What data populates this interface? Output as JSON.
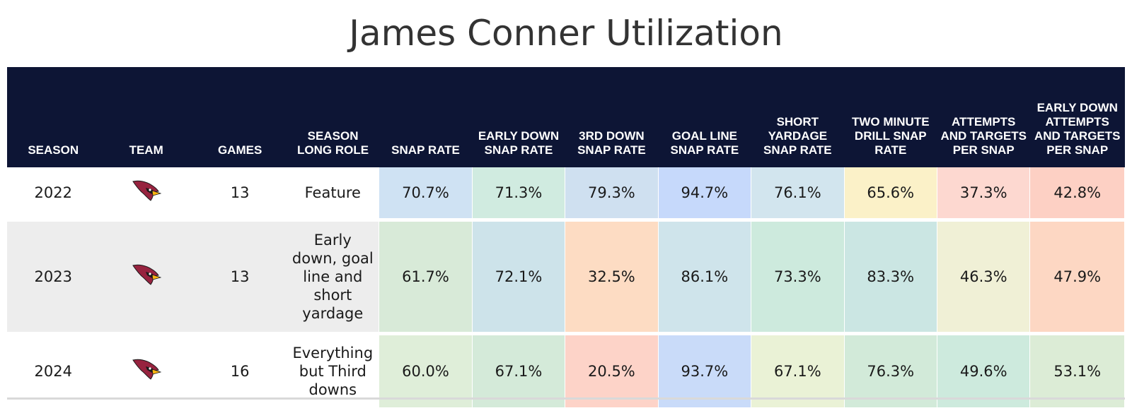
{
  "title": "James Conner Utilization",
  "chart_data": {
    "type": "table",
    "title": "James Conner Utilization",
    "columns": [
      "SEASON",
      "TEAM",
      "GAMES",
      "SEASON LONG ROLE",
      "SNAP RATE",
      "EARLY DOWN SNAP RATE",
      "3RD DOWN SNAP RATE",
      "GOAL LINE SNAP RATE",
      "SHORT YARDAGE SNAP RATE",
      "TWO MINUTE DRILL SNAP RATE",
      "ATTEMPTS AND TARGETS PER SNAP",
      "EARLY DOWN ATTEMPTS AND TARGETS PER SNAP"
    ],
    "rows": [
      {
        "season": "2022",
        "team": "cardinals-logo",
        "games": "13",
        "role": "Feature",
        "metrics": [
          "70.7%",
          "71.3%",
          "79.3%",
          "94.7%",
          "76.1%",
          "65.6%",
          "37.3%",
          "42.8%"
        ],
        "colors": [
          "#cfe2f3",
          "#d0ebe0",
          "#cfe0f0",
          "#c6d9fb",
          "#d2e5ee",
          "#fbf1c8",
          "#fdd8d0",
          "#fdd0c4"
        ]
      },
      {
        "season": "2023",
        "team": "cardinals-logo",
        "games": "13",
        "role": "Early down, goal line and short yardage",
        "metrics": [
          "61.7%",
          "72.1%",
          "32.5%",
          "86.1%",
          "73.3%",
          "83.3%",
          "46.3%",
          "47.9%"
        ],
        "colors": [
          "#d8ead8",
          "#cde3ea",
          "#fddcc3",
          "#cfe4eb",
          "#cdeadd",
          "#cbe6e3",
          "#f0f0d6",
          "#fdd7c3"
        ]
      },
      {
        "season": "2024",
        "team": "cardinals-logo",
        "games": "16",
        "role": "Everything but Third downs",
        "metrics": [
          "60.0%",
          "67.1%",
          "20.5%",
          "93.7%",
          "67.1%",
          "76.3%",
          "49.6%",
          "53.1%"
        ],
        "colors": [
          "#dfeed9",
          "#d4ead9",
          "#fdd3c8",
          "#c9dbf9",
          "#eaf2d6",
          "#d2ead9",
          "#cdeadd",
          "#dcecd6"
        ]
      }
    ]
  }
}
